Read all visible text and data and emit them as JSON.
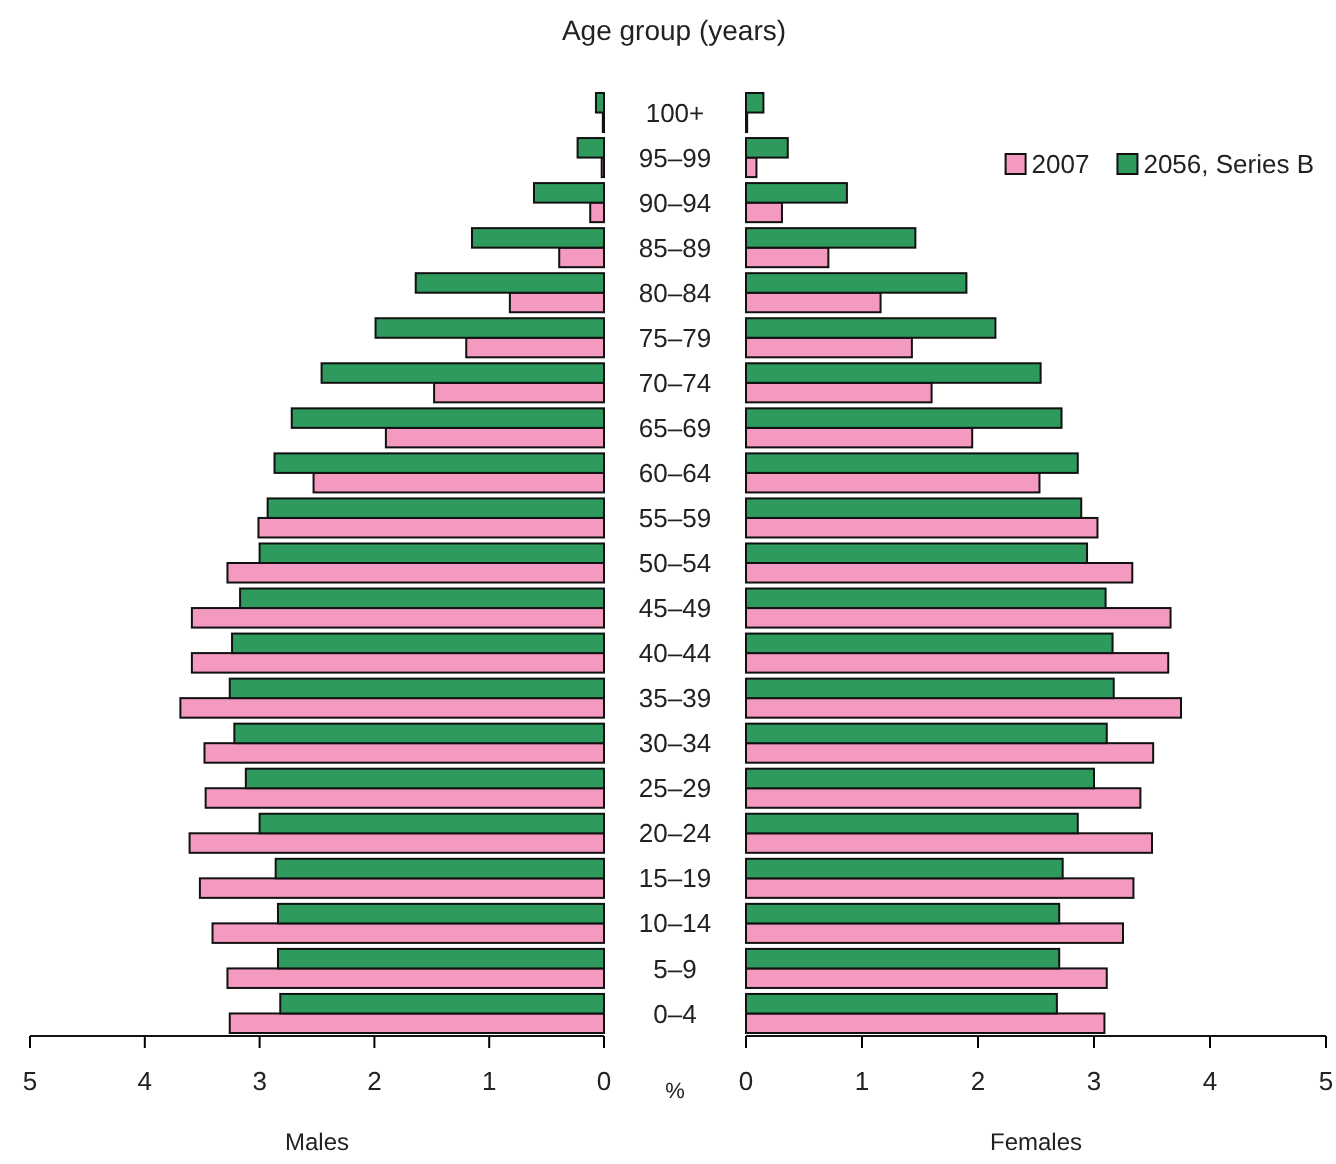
{
  "chart_data": [
    {
      "type": "bar",
      "orientation": "horizontal",
      "title": "Age group (years)",
      "xlabel": "Males",
      "annotations": [
        "%"
      ],
      "categories": [
        "100+",
        "95–99",
        "90–94",
        "85–89",
        "80–84",
        "75–79",
        "70–74",
        "65–69",
        "60–64",
        "55–59",
        "50–54",
        "45–49",
        "40–44",
        "35–39",
        "30–34",
        "25–29",
        "20–24",
        "15–19",
        "10–14",
        "5–9",
        "0–4"
      ],
      "series": [
        {
          "color": "#f49ac1",
          "values": [
            0.01,
            0.02,
            0.12,
            0.39,
            0.82,
            1.2,
            1.48,
            1.9,
            2.53,
            3.01,
            3.28,
            3.59,
            3.59,
            3.69,
            3.48,
            3.47,
            3.61,
            3.52,
            3.41,
            3.28,
            3.26
          ]
        },
        {
          "color": "#2e9a5e",
          "values": [
            0.07,
            0.23,
            0.61,
            1.15,
            1.64,
            1.99,
            2.46,
            2.72,
            2.87,
            2.93,
            3.0,
            3.17,
            3.24,
            3.26,
            3.22,
            3.12,
            3.0,
            2.86,
            2.84,
            2.84,
            2.82
          ]
        }
      ],
      "xlim": [
        5,
        0
      ],
      "xticks": [
        5,
        4,
        3,
        2,
        1,
        0
      ],
      "grid": false
    },
    {
      "type": "bar",
      "orientation": "horizontal",
      "xlabel": "Females",
      "tick_labels": "x",
      "legend": "top right",
      "categories": [
        null,
        null,
        null,
        null,
        null,
        null,
        null,
        null,
        null,
        null,
        null,
        null,
        null,
        null,
        null,
        null,
        null,
        null,
        null,
        null,
        null
      ],
      "series": [
        {
          "name": "2007",
          "color": "#f49ac1",
          "values": [
            0.01,
            0.09,
            0.31,
            0.71,
            1.16,
            1.43,
            1.6,
            1.95,
            2.53,
            3.03,
            3.33,
            3.66,
            3.64,
            3.75,
            3.51,
            3.4,
            3.5,
            3.34,
            3.25,
            3.11,
            3.09
          ]
        },
        {
          "name": "2056, Series B",
          "color": "#2e9a5e",
          "values": [
            0.15,
            0.36,
            0.87,
            1.46,
            1.9,
            2.15,
            2.54,
            2.72,
            2.86,
            2.89,
            2.94,
            3.1,
            3.16,
            3.17,
            3.11,
            3.0,
            2.86,
            2.73,
            2.7,
            2.7,
            2.68
          ]
        }
      ],
      "xlim": [
        0,
        5
      ],
      "xticks": [
        0,
        1,
        2,
        3,
        4,
        5
      ],
      "grid": false
    }
  ]
}
